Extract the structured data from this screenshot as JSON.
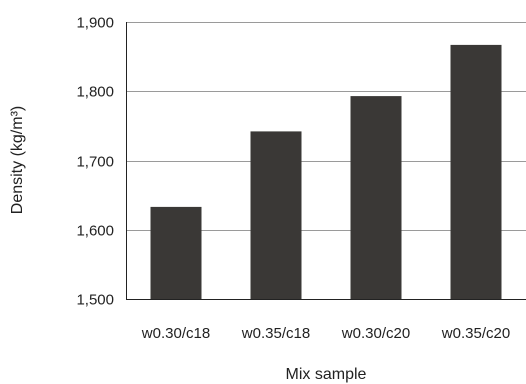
{
  "chart_data": {
    "type": "bar",
    "title": "",
    "xlabel": "Mix sample",
    "ylabel": "Density (kg/m³)",
    "categories": [
      "w0.30/c18",
      "w0.35/c18",
      "w0.30/c20",
      "w0.35/c20"
    ],
    "series": [
      {
        "values": [
          1633,
          1742,
          1793,
          1867
        ]
      }
    ],
    "ylim": [
      1500,
      1900
    ],
    "yticks": [
      1500,
      1600,
      1700,
      1800,
      1900
    ],
    "ytick_labels": [
      "1,500",
      "1,600",
      "1,700",
      "1,800",
      "1,900"
    ],
    "grid": "horizontal",
    "legend": "none",
    "bar_color": "#3a3836",
    "grid_color": "#9a9a9a",
    "axis_color": "#222222"
  }
}
